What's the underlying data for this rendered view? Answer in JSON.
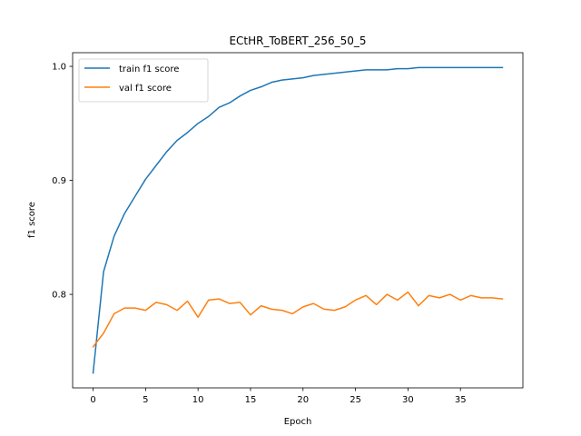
{
  "chart_data": {
    "type": "line",
    "title": "ECtHR_ToBERT_256_50_5",
    "xlabel": "Epoch",
    "ylabel": "f1 score",
    "xlim": [
      -1.95,
      40.95
    ],
    "ylim": [
      0.718,
      1.012
    ],
    "xticks": [
      0,
      5,
      10,
      15,
      20,
      25,
      30,
      35
    ],
    "yticks": [
      0.8,
      0.9,
      1.0
    ],
    "ytick_labels": [
      "0.8",
      "0.9",
      "1.0"
    ],
    "grid": false,
    "legend_position": "top-left",
    "x": [
      0,
      1,
      2,
      3,
      4,
      5,
      6,
      7,
      8,
      9,
      10,
      11,
      12,
      13,
      14,
      15,
      16,
      17,
      18,
      19,
      20,
      21,
      22,
      23,
      24,
      25,
      26,
      27,
      28,
      29,
      30,
      31,
      32,
      33,
      34,
      35,
      36,
      37,
      38,
      39
    ],
    "series": [
      {
        "name": "train f1 score",
        "color": "#1f77b4",
        "values": [
          0.731,
          0.82,
          0.851,
          0.871,
          0.886,
          0.901,
          0.913,
          0.925,
          0.935,
          0.942,
          0.95,
          0.956,
          0.964,
          0.968,
          0.974,
          0.979,
          0.982,
          0.986,
          0.988,
          0.989,
          0.99,
          0.992,
          0.993,
          0.994,
          0.995,
          0.996,
          0.997,
          0.997,
          0.997,
          0.998,
          0.998,
          0.999,
          0.999,
          0.999,
          0.999,
          0.999,
          0.999,
          0.999,
          0.999,
          0.999
        ]
      },
      {
        "name": "val f1 score",
        "color": "#ff7f0e",
        "values": [
          0.754,
          0.766,
          0.783,
          0.788,
          0.788,
          0.786,
          0.793,
          0.791,
          0.786,
          0.794,
          0.78,
          0.795,
          0.796,
          0.792,
          0.793,
          0.782,
          0.79,
          0.787,
          0.786,
          0.783,
          0.789,
          0.792,
          0.787,
          0.786,
          0.789,
          0.795,
          0.799,
          0.791,
          0.8,
          0.795,
          0.802,
          0.79,
          0.799,
          0.797,
          0.8,
          0.795,
          0.799,
          0.797,
          0.797,
          0.796
        ]
      }
    ]
  }
}
